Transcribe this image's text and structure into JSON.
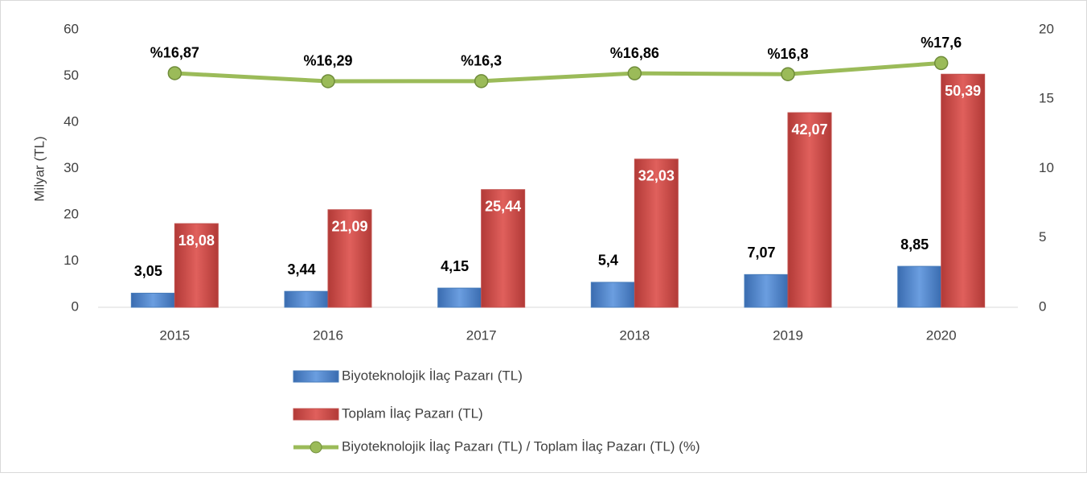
{
  "chart_data": {
    "type": "bar",
    "y_label": "Milyar (TL)",
    "categories": [
      "2015",
      "2016",
      "2017",
      "2018",
      "2019",
      "2020"
    ],
    "series": [
      {
        "name": "Biyoteknolojik İlaç Pazarı (TL)",
        "color": "#4a7ebb",
        "values": [
          3.05,
          3.44,
          4.15,
          5.4,
          7.07,
          8.85
        ],
        "value_labels": [
          "3,05",
          "3,44",
          "4,15",
          "5,4",
          "7,07",
          "8,85"
        ]
      },
      {
        "name": "Toplam İlaç Pazarı (TL)",
        "color": "#c0504d",
        "values": [
          18.08,
          21.09,
          25.44,
          32.03,
          42.07,
          50.39
        ],
        "value_labels": [
          "18,08",
          "21,09",
          "25,44",
          "32,03",
          "42,07",
          "50,39"
        ]
      },
      {
        "name": "Biyoteknolojik İlaç Pazarı (TL) / Toplam İlaç Pazarı (TL) (%)",
        "type": "line",
        "axis": "y2",
        "color": "#9bbb59",
        "values": [
          16.87,
          16.29,
          16.3,
          16.86,
          16.8,
          17.6
        ],
        "value_labels": [
          "%16,87",
          "%16,29",
          "%16,3",
          "%16,86",
          "%16,8",
          "%17,6"
        ]
      }
    ],
    "ylim": [
      0,
      60
    ],
    "yticks": [
      0,
      10,
      20,
      30,
      40,
      50,
      60
    ],
    "y2lim": [
      0,
      20
    ],
    "y2ticks": [
      0,
      5,
      10,
      15,
      20
    ],
    "grid": false,
    "legend": "bottom"
  }
}
